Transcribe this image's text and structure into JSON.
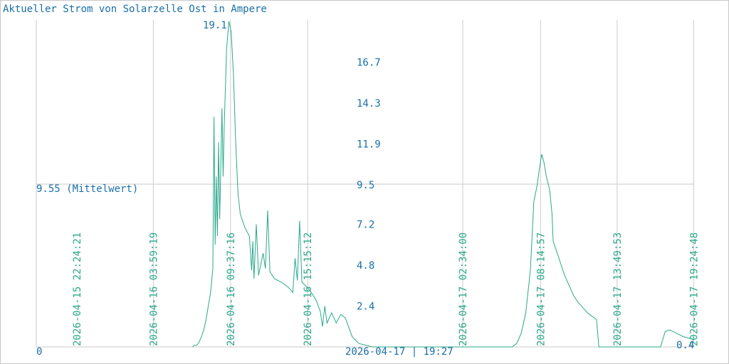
{
  "chart_data": {
    "type": "line",
    "title": "Aktueller Strom von Solarzelle Ost in Ampere",
    "ylim": [
      0,
      19.1
    ],
    "y_ticks": [
      2.4,
      4.8,
      7.2,
      9.5,
      11.9,
      14.3,
      16.7
    ],
    "y_tick_labels": [
      "2.4",
      "4.8",
      "7.2",
      "9.5",
      "11.9",
      "14.3",
      "16.7"
    ],
    "ymin_label": "0",
    "max_label": "19.1",
    "mean": 9.55,
    "mean_label": "9.55 (Mittelwert)",
    "x_tick_labels": [
      "2026-04-15 22:24:21",
      "2026-04-16 03:59:19",
      "2026-04-16 09:37:16",
      "2026-04-16 15:15:12",
      "2026-04-17 02:34:00",
      "2026-04-17 08:14:57",
      "2026-04-17 13:49:53",
      "2026-04-17 19:24:48"
    ],
    "footer_label": "2026-04-17 | 19:27",
    "last_value_label": "0.4",
    "grid": true,
    "series": [
      {
        "color": "#2aa88a",
        "points": [
          [
            "2026-04-16 06:50",
            0.0
          ],
          [
            "2026-04-16 07:00",
            0.1
          ],
          [
            "2026-04-16 07:10",
            0.1
          ],
          [
            "2026-04-16 07:20",
            0.3
          ],
          [
            "2026-04-16 07:30",
            0.6
          ],
          [
            "2026-04-16 07:40",
            1.0
          ],
          [
            "2026-04-16 07:50",
            1.6
          ],
          [
            "2026-04-16 08:00",
            2.4
          ],
          [
            "2026-04-16 08:10",
            3.2
          ],
          [
            "2026-04-16 08:20",
            4.6
          ],
          [
            "2026-04-16 08:25",
            13.5
          ],
          [
            "2026-04-16 08:30",
            6.0
          ],
          [
            "2026-04-16 08:35",
            10.0
          ],
          [
            "2026-04-16 08:40",
            6.5
          ],
          [
            "2026-04-16 08:45",
            12.0
          ],
          [
            "2026-04-16 08:50",
            7.5
          ],
          [
            "2026-04-16 09:00",
            14.0
          ],
          [
            "2026-04-16 09:05",
            10.0
          ],
          [
            "2026-04-16 09:10",
            13.0
          ],
          [
            "2026-04-16 09:20",
            17.5
          ],
          [
            "2026-04-16 09:30",
            19.1
          ],
          [
            "2026-04-16 09:40",
            18.5
          ],
          [
            "2026-04-16 09:50",
            16.0
          ],
          [
            "2026-04-16 10:00",
            12.0
          ],
          [
            "2026-04-16 10:10",
            9.0
          ],
          [
            "2026-04-16 10:20",
            7.8
          ],
          [
            "2026-04-16 10:40",
            7.0
          ],
          [
            "2026-04-16 11:00",
            6.5
          ],
          [
            "2026-04-16 11:10",
            4.5
          ],
          [
            "2026-04-16 11:15",
            6.2
          ],
          [
            "2026-04-16 11:20",
            4.0
          ],
          [
            "2026-04-16 11:30",
            7.2
          ],
          [
            "2026-04-16 11:40",
            4.2
          ],
          [
            "2026-04-16 12:00",
            5.5
          ],
          [
            "2026-04-16 12:10",
            4.6
          ],
          [
            "2026-04-16 12:20",
            8.0
          ],
          [
            "2026-04-16 12:30",
            4.4
          ],
          [
            "2026-04-16 12:50",
            4.0
          ],
          [
            "2026-04-16 13:20",
            3.8
          ],
          [
            "2026-04-16 13:50",
            3.5
          ],
          [
            "2026-04-16 14:10",
            3.2
          ],
          [
            "2026-04-16 14:20",
            5.2
          ],
          [
            "2026-04-16 14:30",
            3.9
          ],
          [
            "2026-04-16 14:40",
            7.4
          ],
          [
            "2026-04-16 14:50",
            3.8
          ],
          [
            "2026-04-16 15:20",
            3.4
          ],
          [
            "2026-04-16 15:50",
            2.8
          ],
          [
            "2026-04-16 16:10",
            2.1
          ],
          [
            "2026-04-16 16:20",
            1.2
          ],
          [
            "2026-04-16 16:30",
            2.4
          ],
          [
            "2026-04-16 16:40",
            1.4
          ],
          [
            "2026-04-16 17:00",
            2.0
          ],
          [
            "2026-04-16 17:20",
            1.4
          ],
          [
            "2026-04-16 17:40",
            1.9
          ],
          [
            "2026-04-16 18:00",
            1.7
          ],
          [
            "2026-04-16 18:30",
            0.6
          ],
          [
            "2026-04-16 19:00",
            0.2
          ],
          [
            "2026-04-16 19:30",
            0.1
          ],
          [
            "2026-04-16 20:00",
            0.0
          ],
          [
            "2026-04-17 06:10",
            0.0
          ],
          [
            "2026-04-17 06:30",
            0.2
          ],
          [
            "2026-04-17 06:50",
            0.8
          ],
          [
            "2026-04-17 07:10",
            2.0
          ],
          [
            "2026-04-17 07:30",
            4.5
          ],
          [
            "2026-04-17 07:45",
            8.5
          ],
          [
            "2026-04-17 08:00",
            9.5
          ],
          [
            "2026-04-17 08:10",
            10.5
          ],
          [
            "2026-04-17 08:20",
            11.3
          ],
          [
            "2026-04-17 08:30",
            10.8
          ],
          [
            "2026-04-17 08:40",
            10.0
          ],
          [
            "2026-04-17 08:55",
            9.2
          ],
          [
            "2026-04-17 09:05",
            7.8
          ],
          [
            "2026-04-17 09:10",
            6.2
          ],
          [
            "2026-04-17 09:20",
            5.8
          ],
          [
            "2026-04-17 09:40",
            5.0
          ],
          [
            "2026-04-17 10:00",
            4.2
          ],
          [
            "2026-04-17 10:20",
            3.6
          ],
          [
            "2026-04-17 10:40",
            3.0
          ],
          [
            "2026-04-17 11:00",
            2.6
          ],
          [
            "2026-04-17 11:20",
            2.3
          ],
          [
            "2026-04-17 11:40",
            2.0
          ],
          [
            "2026-04-17 12:00",
            1.8
          ],
          [
            "2026-04-17 12:20",
            1.6
          ],
          [
            "2026-04-17 12:30",
            0.0
          ],
          [
            "2026-04-17 17:00",
            0.0
          ],
          [
            "2026-04-17 17:20",
            0.9
          ],
          [
            "2026-04-17 17:40",
            1.0
          ],
          [
            "2026-04-17 18:10",
            0.8
          ],
          [
            "2026-04-17 18:40",
            0.6
          ],
          [
            "2026-04-17 19:10",
            0.5
          ],
          [
            "2026-04-17 19:27",
            0.4
          ]
        ]
      }
    ]
  }
}
